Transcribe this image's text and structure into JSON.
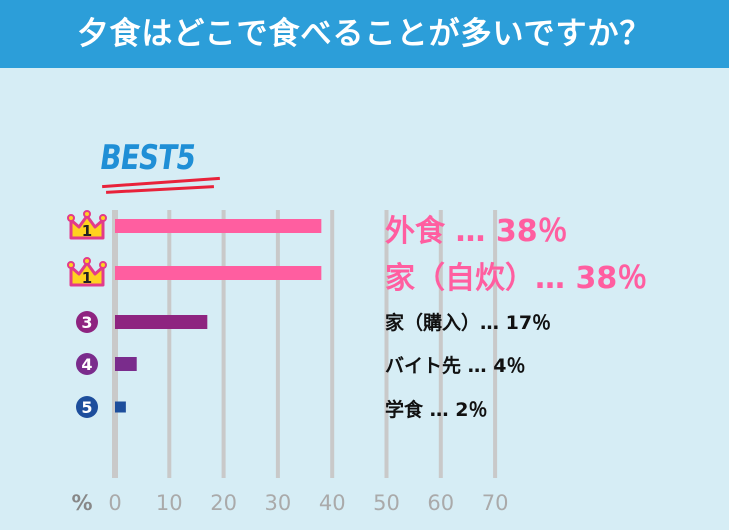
{
  "header": {
    "title": "夕食はどこで食べることが多いですか？"
  },
  "badge": {
    "text": "BEST5"
  },
  "colors": {
    "header_bg": "#2c9ed9",
    "background": "#d6edf5",
    "pink": "#ff5ea0",
    "purple_dark": "#8e2480",
    "purple": "#7a2c8c",
    "blue": "#1d4e9c",
    "grid": "#c9c9c9",
    "tick": "#aaaaaa"
  },
  "items": [
    {
      "rank": "1",
      "rank_icon": "crown-icon",
      "label": "外食 … 38％",
      "style": "big",
      "color": "#ff5ea0"
    },
    {
      "rank": "1",
      "rank_icon": "crown-icon",
      "label": "家（自炊）… 38％",
      "style": "big",
      "color": "#ff5ea0"
    },
    {
      "rank": "3",
      "rank_icon": "circle-rank-icon",
      "label": "家（購入）… 17％",
      "style": "small",
      "color": "#8e2480"
    },
    {
      "rank": "4",
      "rank_icon": "circle-rank-icon",
      "label": "バイト先 … 4％",
      "style": "small",
      "color": "#7a2c8c"
    },
    {
      "rank": "5",
      "rank_icon": "circle-rank-icon",
      "label": "学食 … 2％",
      "style": "small",
      "color": "#1d4e9c"
    }
  ],
  "chart_data": {
    "type": "bar",
    "orientation": "horizontal",
    "title": "夕食はどこで食べることが多いですか？",
    "categories": [
      "外食",
      "家（自炊）",
      "家（購入）",
      "バイト先",
      "学食"
    ],
    "values": [
      38,
      38,
      17,
      4,
      2
    ],
    "unit_label": "%",
    "xlim": [
      0,
      70
    ],
    "xticks": [
      0,
      10,
      20,
      30,
      40,
      50,
      60,
      70
    ],
    "grid": true,
    "legend": "none"
  }
}
